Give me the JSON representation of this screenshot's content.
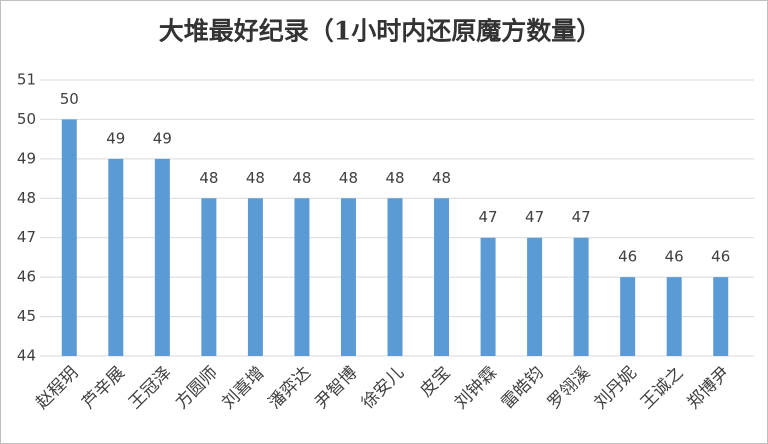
{
  "chart_data": {
    "type": "bar",
    "title": "大堆最好纪录（1小时内还原魔方数量）",
    "categories": [
      "赵程玥",
      "芦辛展",
      "王冠泽",
      "方圆师",
      "刘喜增",
      "潘弈达",
      "尹智博",
      "徐安儿",
      "皮宝",
      "刘钟霖",
      "雷皓钧",
      "罗翎溪",
      "刘丹妮",
      "王诚之",
      "郑博尹"
    ],
    "values": [
      50,
      49,
      49,
      48,
      48,
      48,
      48,
      48,
      48,
      47,
      47,
      47,
      46,
      46,
      46
    ],
    "color": "#5b9bd5",
    "ylim": [
      44,
      51
    ],
    "yticks": [
      44,
      45,
      46,
      47,
      48,
      49,
      50,
      51
    ],
    "grid": true
  }
}
